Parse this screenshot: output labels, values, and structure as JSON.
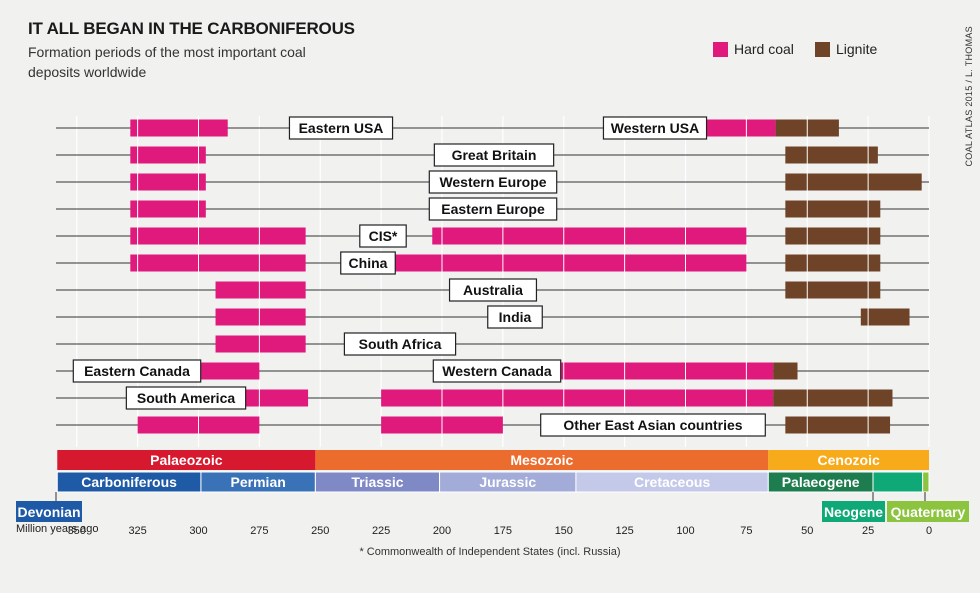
{
  "header": {
    "title": "IT ALL BEGAN IN THE CARBONIFEROUS",
    "subtitle": "Formation periods of the most important coal deposits worldwide",
    "credit": "COAL ATLAS 2015 / L. THOMAS"
  },
  "footnote": "* Commonwealth of Independent States (incl. Russia)",
  "chart_data": {
    "type": "bar",
    "subtype": "horizontal range (gantt) timeline",
    "x_axis": {
      "label": "Million years ago",
      "range": [
        360,
        0
      ],
      "reversed": true,
      "ticks": [
        350,
        325,
        300,
        275,
        250,
        225,
        200,
        175,
        150,
        125,
        100,
        75,
        50,
        25,
        0
      ]
    },
    "legend": {
      "placement": "top-right",
      "items": [
        {
          "name": "Hard coal",
          "color": "#e0197d"
        },
        {
          "name": "Lignite",
          "color": "#6e4327"
        }
      ]
    },
    "colors": {
      "hard_coal": "#e0197d",
      "lignite": "#6e4327"
    },
    "rows": [
      {
        "label": "Eastern USA",
        "segments": [
          {
            "type": "hard_coal",
            "start": 328,
            "end": 288
          }
        ]
      },
      {
        "label": "Western USA",
        "segments": [
          {
            "type": "hard_coal",
            "start": 93,
            "end": 63
          },
          {
            "type": "lignite",
            "start": 63,
            "end": 37
          }
        ]
      },
      {
        "label": "Great Britain",
        "segments": [
          {
            "type": "hard_coal",
            "start": 328,
            "end": 297
          },
          {
            "type": "lignite",
            "start": 59,
            "end": 21
          }
        ]
      },
      {
        "label": "Western Europe",
        "segments": [
          {
            "type": "hard_coal",
            "start": 328,
            "end": 297
          },
          {
            "type": "lignite",
            "start": 59,
            "end": 3
          }
        ]
      },
      {
        "label": "Eastern Europe",
        "segments": [
          {
            "type": "hard_coal",
            "start": 328,
            "end": 297
          },
          {
            "type": "lignite",
            "start": 59,
            "end": 20
          }
        ]
      },
      {
        "label": "CIS*",
        "segments": [
          {
            "type": "hard_coal",
            "start": 328,
            "end": 256
          },
          {
            "type": "hard_coal",
            "start": 204,
            "end": 75
          },
          {
            "type": "lignite",
            "start": 59,
            "end": 20
          }
        ]
      },
      {
        "label": "China",
        "segments": [
          {
            "type": "hard_coal",
            "start": 328,
            "end": 256
          },
          {
            "type": "hard_coal",
            "start": 224,
            "end": 75
          },
          {
            "type": "lignite",
            "start": 59,
            "end": 20
          }
        ]
      },
      {
        "label": "Australia",
        "segments": [
          {
            "type": "hard_coal",
            "start": 293,
            "end": 256
          },
          {
            "type": "lignite",
            "start": 59,
            "end": 20
          }
        ]
      },
      {
        "label": "India",
        "segments": [
          {
            "type": "hard_coal",
            "start": 293,
            "end": 256
          },
          {
            "type": "lignite",
            "start": 28,
            "end": 8
          }
        ]
      },
      {
        "label": "South Africa",
        "segments": [
          {
            "type": "hard_coal",
            "start": 293,
            "end": 256
          }
        ]
      },
      {
        "label": "Eastern Canada",
        "segments": [
          {
            "type": "hard_coal",
            "start": 310,
            "end": 275
          }
        ]
      },
      {
        "label": "Western Canada",
        "segments": [
          {
            "type": "hard_coal",
            "start": 157,
            "end": 64
          },
          {
            "type": "lignite",
            "start": 64,
            "end": 54
          }
        ]
      },
      {
        "label": "South America",
        "segments": [
          {
            "type": "hard_coal",
            "start": 293,
            "end": 255
          },
          {
            "type": "hard_coal",
            "start": 225,
            "end": 64
          },
          {
            "type": "lignite",
            "start": 64,
            "end": 15
          }
        ]
      },
      {
        "label": "Other East Asian countries",
        "segments": [
          {
            "type": "hard_coal",
            "start": 325,
            "end": 275
          },
          {
            "type": "hard_coal",
            "start": 225,
            "end": 175
          },
          {
            "type": "lignite",
            "start": 59,
            "end": 16
          }
        ]
      }
    ],
    "eras": [
      {
        "name": "Palaeozoic",
        "start": 360,
        "end": 252,
        "color": "#d7192f"
      },
      {
        "name": "Mesozoic",
        "start": 252,
        "end": 66,
        "color": "#ec6c2d"
      },
      {
        "name": "Cenozoic",
        "start": 66,
        "end": 0,
        "color": "#f7aa1a"
      }
    ],
    "periods": [
      {
        "name": "Carboniferous",
        "start": 359,
        "end": 299,
        "color": "#1f5aa6",
        "text": "#ffffff"
      },
      {
        "name": "Permian",
        "start": 299,
        "end": 252,
        "color": "#3a72b8",
        "text": "#ffffff"
      },
      {
        "name": "Triassic",
        "start": 252,
        "end": 201,
        "color": "#7f89c6",
        "text": "#ffffff"
      },
      {
        "name": "Jurassic",
        "start": 201,
        "end": 145,
        "color": "#a3acd9",
        "text": "#ffffff"
      },
      {
        "name": "Cretaceous",
        "start": 145,
        "end": 66,
        "color": "#c4c9ea",
        "text": "#ffffff"
      },
      {
        "name": "Palaeogene",
        "start": 66,
        "end": 23,
        "color": "#1d7d4f",
        "text": "#ffffff"
      },
      {
        "name": "Neogene",
        "start": 23,
        "end": 2.6,
        "color": "#0fa877",
        "text": "#ffffff"
      },
      {
        "name": "Quaternary",
        "start": 2.6,
        "end": 0,
        "color": "#8cc43f",
        "text": "#ffffff"
      }
    ],
    "period_labels_outside": [
      {
        "name": "Devonian",
        "color": "#1f5aa6"
      },
      {
        "name": "Neogene",
        "color": "#0fa877"
      },
      {
        "name": "Quaternary",
        "color": "#8cc43f"
      }
    ]
  }
}
